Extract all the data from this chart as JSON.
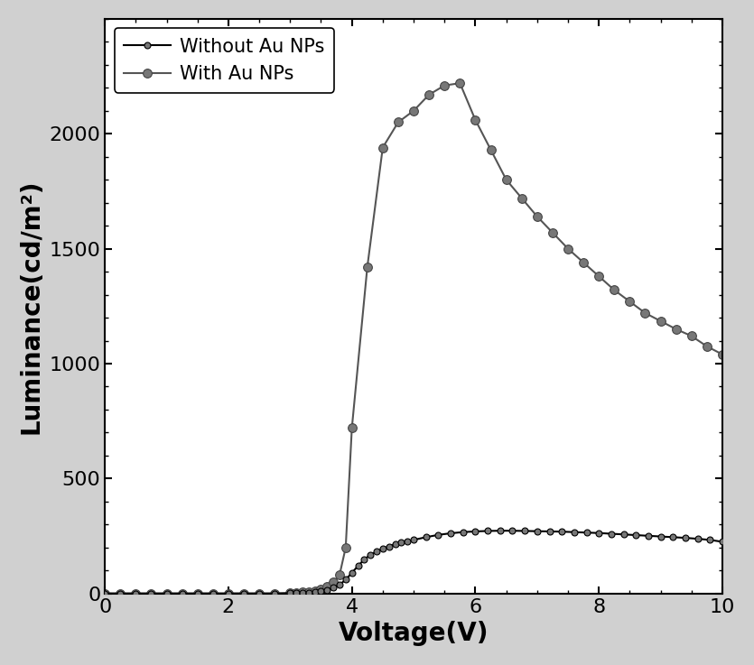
{
  "title": "",
  "xlabel": "Voltage(V)",
  "ylabel": "Luminance(cd/m²)",
  "xlim": [
    0,
    10
  ],
  "ylim": [
    0,
    2500
  ],
  "yticks": [
    0,
    500,
    1000,
    1500,
    2000
  ],
  "xticks": [
    0,
    2,
    4,
    6,
    8,
    10
  ],
  "background_color": "#ffffff",
  "figure_facecolor": "#d0d0d0",
  "without_au_nps": {
    "label": "Without Au NPs",
    "line_color": "#000000",
    "marker_face": "#777777",
    "marker_edge": "#000000",
    "x": [
      0.0,
      0.25,
      0.5,
      0.75,
      1.0,
      1.25,
      1.5,
      1.75,
      2.0,
      2.25,
      2.5,
      2.75,
      3.0,
      3.1,
      3.2,
      3.3,
      3.4,
      3.5,
      3.6,
      3.7,
      3.8,
      3.9,
      4.0,
      4.1,
      4.2,
      4.3,
      4.4,
      4.5,
      4.6,
      4.7,
      4.8,
      4.9,
      5.0,
      5.2,
      5.4,
      5.6,
      5.8,
      6.0,
      6.2,
      6.4,
      6.6,
      6.8,
      7.0,
      7.2,
      7.4,
      7.6,
      7.8,
      8.0,
      8.2,
      8.4,
      8.6,
      8.8,
      9.0,
      9.2,
      9.4,
      9.6,
      9.8,
      10.0
    ],
    "y": [
      0,
      0,
      0,
      0,
      0,
      0,
      0,
      0,
      0,
      0,
      0,
      0,
      1,
      2,
      3,
      4,
      6,
      10,
      16,
      25,
      38,
      60,
      90,
      120,
      148,
      168,
      182,
      195,
      205,
      215,
      222,
      228,
      233,
      245,
      255,
      262,
      267,
      270,
      272,
      273,
      273,
      272,
      271,
      270,
      269,
      267,
      265,
      263,
      260,
      257,
      254,
      251,
      248,
      245,
      242,
      238,
      233,
      225
    ]
  },
  "with_au_nps": {
    "label": "With Au NPs",
    "line_color": "#555555",
    "marker_face": "#777777",
    "marker_edge": "#444444",
    "x": [
      0.0,
      0.25,
      0.5,
      0.75,
      1.0,
      1.25,
      1.5,
      1.75,
      2.0,
      2.25,
      2.5,
      2.75,
      3.0,
      3.1,
      3.2,
      3.3,
      3.4,
      3.5,
      3.6,
      3.7,
      3.8,
      3.9,
      4.0,
      4.25,
      4.5,
      4.75,
      5.0,
      5.25,
      5.5,
      5.75,
      6.0,
      6.25,
      6.5,
      6.75,
      7.0,
      7.25,
      7.5,
      7.75,
      8.0,
      8.25,
      8.5,
      8.75,
      9.0,
      9.25,
      9.5,
      9.75,
      10.0
    ],
    "y": [
      0,
      0,
      0,
      0,
      0,
      0,
      0,
      0,
      0,
      0,
      0,
      0,
      2,
      3,
      5,
      8,
      12,
      20,
      30,
      50,
      80,
      200,
      720,
      1420,
      1940,
      2050,
      2100,
      2170,
      2210,
      2220,
      2060,
      1930,
      1800,
      1720,
      1640,
      1570,
      1500,
      1440,
      1380,
      1320,
      1270,
      1220,
      1185,
      1150,
      1120,
      1075,
      1040
    ]
  }
}
